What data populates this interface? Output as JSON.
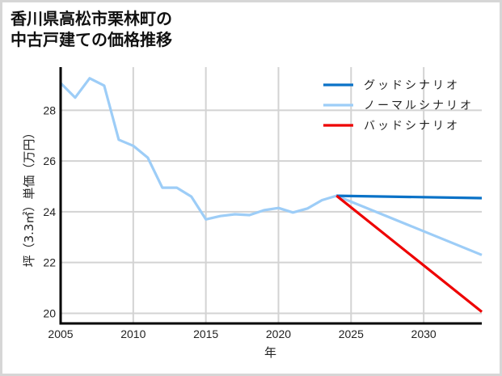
{
  "title_line1": "香川県高松市栗林町の",
  "title_line2": "中古戸建ての価格推移",
  "colors": {
    "good": "#0a72c7",
    "normal": "#9dcdf7",
    "bad": "#ee0000",
    "grid": "#d3d3d3",
    "axis": "#000000",
    "frame": "#d6d6d6"
  },
  "chart_data": {
    "type": "line",
    "title": "香川県高松市栗林町の中古戸建ての価格推移",
    "xlabel": "年",
    "ylabel": "坪（3.3㎡）単価（万円）",
    "xlim": [
      2005,
      2034
    ],
    "ylim": [
      19.6,
      29.7
    ],
    "xticks": [
      2005,
      2010,
      2015,
      2020,
      2025,
      2030
    ],
    "yticks": [
      20,
      22,
      24,
      26,
      28
    ],
    "grid": true,
    "legend_position": "upper right",
    "series": [
      {
        "name": "ノーマルシナリオ",
        "color": "#9dcdf7",
        "x": [
          2005,
          2006,
          2007,
          2008,
          2009,
          2010,
          2011,
          2012,
          2013,
          2014,
          2015,
          2016,
          2017,
          2018,
          2019,
          2020,
          2021,
          2022,
          2023,
          2024,
          2034
        ],
        "y": [
          29.07,
          28.5,
          29.26,
          28.97,
          26.84,
          26.6,
          26.13,
          24.95,
          24.95,
          24.6,
          23.7,
          23.83,
          23.9,
          23.87,
          24.06,
          24.15,
          23.97,
          24.13,
          24.46,
          24.63,
          22.3
        ]
      },
      {
        "name": "グッドシナリオ",
        "color": "#0a72c7",
        "x": [
          2024,
          2034
        ],
        "y": [
          24.63,
          24.54
        ]
      },
      {
        "name": "バッドシナリオ",
        "color": "#ee0000",
        "x": [
          2024,
          2034
        ],
        "y": [
          24.63,
          20.06
        ]
      }
    ]
  },
  "legend": [
    {
      "label": "グッドシナリオ",
      "color": "#0a72c7"
    },
    {
      "label": "ノーマルシナリオ",
      "color": "#9dcdf7"
    },
    {
      "label": "バッドシナリオ",
      "color": "#ee0000"
    }
  ]
}
